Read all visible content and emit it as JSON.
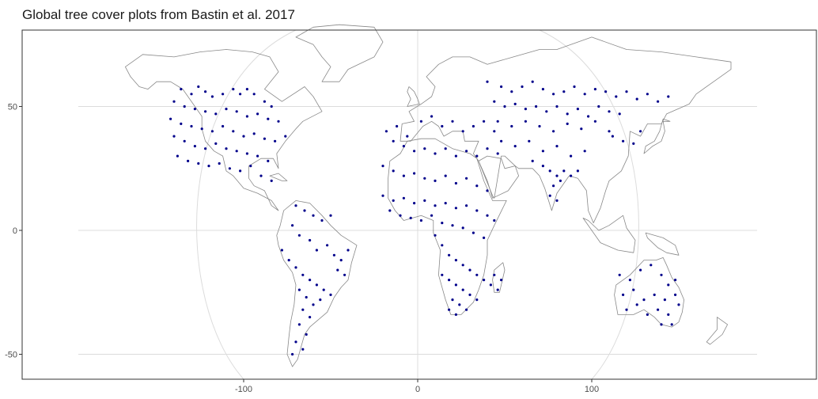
{
  "title": "Global tree cover plots from Bastin et al. 2017",
  "colors": {
    "points": "#00008B",
    "land": "#888888",
    "grid": "#dcdcdc",
    "frame": "#333333"
  },
  "chart_data": {
    "type": "scatter",
    "title": "Global tree cover plots from Bastin et al. 2017",
    "xlabel": "",
    "ylabel": "",
    "xlim": [
      -228,
      228
    ],
    "ylim": [
      -60,
      80
    ],
    "x_ticks": [
      -100,
      0,
      100
    ],
    "y_ticks": [
      -50,
      0,
      50
    ],
    "x_tick_labels": [
      "-100",
      "0",
      "100"
    ],
    "y_tick_labels": [
      "-50",
      "0",
      "50"
    ],
    "grid": true,
    "legend": "none",
    "basemap": "world coastlines (outline)",
    "points": [
      [
        -136,
        57
      ],
      [
        -130,
        55
      ],
      [
        -126,
        58
      ],
      [
        -122,
        56
      ],
      [
        -118,
        54
      ],
      [
        -112,
        55
      ],
      [
        -106,
        57
      ],
      [
        -102,
        55
      ],
      [
        -98,
        57
      ],
      [
        -94,
        55
      ],
      [
        -88,
        52
      ],
      [
        -84,
        50
      ],
      [
        -140,
        52
      ],
      [
        -134,
        50
      ],
      [
        -128,
        49
      ],
      [
        -122,
        48
      ],
      [
        -116,
        47
      ],
      [
        -110,
        49
      ],
      [
        -104,
        48
      ],
      [
        -98,
        46
      ],
      [
        -92,
        47
      ],
      [
        -86,
        45
      ],
      [
        -80,
        44
      ],
      [
        -142,
        45
      ],
      [
        -136,
        43
      ],
      [
        -130,
        42
      ],
      [
        -124,
        41
      ],
      [
        -118,
        40
      ],
      [
        -112,
        42
      ],
      [
        -106,
        40
      ],
      [
        -100,
        38
      ],
      [
        -94,
        39
      ],
      [
        -88,
        37
      ],
      [
        -82,
        36
      ],
      [
        -76,
        38
      ],
      [
        -140,
        38
      ],
      [
        -134,
        36
      ],
      [
        -128,
        34
      ],
      [
        -122,
        33
      ],
      [
        -116,
        35
      ],
      [
        -110,
        33
      ],
      [
        -104,
        32
      ],
      [
        -98,
        31
      ],
      [
        -92,
        30
      ],
      [
        -86,
        28
      ],
      [
        -138,
        30
      ],
      [
        -132,
        28
      ],
      [
        -126,
        27
      ],
      [
        -120,
        26
      ],
      [
        -114,
        27
      ],
      [
        -108,
        25
      ],
      [
        -102,
        24
      ],
      [
        -96,
        26
      ],
      [
        -90,
        22
      ],
      [
        -84,
        20
      ],
      [
        -70,
        10
      ],
      [
        -65,
        8
      ],
      [
        -60,
        6
      ],
      [
        -55,
        4
      ],
      [
        -50,
        6
      ],
      [
        -72,
        2
      ],
      [
        -68,
        -2
      ],
      [
        -62,
        -4
      ],
      [
        -58,
        -8
      ],
      [
        -52,
        -6
      ],
      [
        -48,
        -10
      ],
      [
        -44,
        -12
      ],
      [
        -40,
        -8
      ],
      [
        -46,
        -16
      ],
      [
        -42,
        -18
      ],
      [
        -78,
        -8
      ],
      [
        -74,
        -12
      ],
      [
        -70,
        -15
      ],
      [
        -66,
        -18
      ],
      [
        -62,
        -20
      ],
      [
        -58,
        -22
      ],
      [
        -54,
        -24
      ],
      [
        -50,
        -26
      ],
      [
        -56,
        -28
      ],
      [
        -60,
        -30
      ],
      [
        -68,
        -24
      ],
      [
        -64,
        -27
      ],
      [
        -66,
        -32
      ],
      [
        -62,
        -35
      ],
      [
        -68,
        -38
      ],
      [
        -64,
        -42
      ],
      [
        -70,
        -45
      ],
      [
        -66,
        -48
      ],
      [
        -72,
        -50
      ],
      [
        -18,
        40
      ],
      [
        -12,
        42
      ],
      [
        -6,
        38
      ],
      [
        2,
        44
      ],
      [
        8,
        46
      ],
      [
        14,
        42
      ],
      [
        20,
        44
      ],
      [
        26,
        40
      ],
      [
        32,
        42
      ],
      [
        38,
        44
      ],
      [
        44,
        40
      ],
      [
        -14,
        36
      ],
      [
        -8,
        34
      ],
      [
        -2,
        32
      ],
      [
        4,
        33
      ],
      [
        10,
        31
      ],
      [
        16,
        33
      ],
      [
        22,
        30
      ],
      [
        28,
        32
      ],
      [
        34,
        30
      ],
      [
        40,
        33
      ],
      [
        46,
        31
      ],
      [
        -20,
        26
      ],
      [
        -14,
        24
      ],
      [
        -8,
        22
      ],
      [
        -2,
        23
      ],
      [
        4,
        21
      ],
      [
        10,
        20
      ],
      [
        16,
        22
      ],
      [
        22,
        19
      ],
      [
        28,
        21
      ],
      [
        34,
        18
      ],
      [
        40,
        16
      ],
      [
        -20,
        14
      ],
      [
        -14,
        12
      ],
      [
        -8,
        13
      ],
      [
        -2,
        11
      ],
      [
        4,
        12
      ],
      [
        10,
        10
      ],
      [
        16,
        11
      ],
      [
        22,
        9
      ],
      [
        28,
        10
      ],
      [
        34,
        8
      ],
      [
        40,
        6
      ],
      [
        44,
        4
      ],
      [
        -16,
        8
      ],
      [
        -10,
        6
      ],
      [
        -4,
        5
      ],
      [
        2,
        4
      ],
      [
        8,
        6
      ],
      [
        14,
        3
      ],
      [
        20,
        2
      ],
      [
        26,
        1
      ],
      [
        32,
        -1
      ],
      [
        38,
        -3
      ],
      [
        10,
        -2
      ],
      [
        14,
        -6
      ],
      [
        18,
        -10
      ],
      [
        22,
        -12
      ],
      [
        26,
        -14
      ],
      [
        30,
        -16
      ],
      [
        34,
        -18
      ],
      [
        38,
        -20
      ],
      [
        42,
        -22
      ],
      [
        14,
        -18
      ],
      [
        18,
        -20
      ],
      [
        22,
        -22
      ],
      [
        26,
        -24
      ],
      [
        30,
        -26
      ],
      [
        34,
        -28
      ],
      [
        20,
        -28
      ],
      [
        24,
        -30
      ],
      [
        28,
        -32
      ],
      [
        18,
        -32
      ],
      [
        22,
        -34
      ],
      [
        48,
        -20
      ],
      [
        46,
        -24
      ],
      [
        44,
        -18
      ],
      [
        40,
        60
      ],
      [
        48,
        58
      ],
      [
        54,
        56
      ],
      [
        60,
        58
      ],
      [
        66,
        60
      ],
      [
        72,
        57
      ],
      [
        78,
        55
      ],
      [
        84,
        56
      ],
      [
        90,
        58
      ],
      [
        96,
        55
      ],
      [
        102,
        57
      ],
      [
        108,
        56
      ],
      [
        114,
        54
      ],
      [
        120,
        56
      ],
      [
        126,
        53
      ],
      [
        132,
        55
      ],
      [
        138,
        52
      ],
      [
        144,
        54
      ],
      [
        44,
        52
      ],
      [
        50,
        50
      ],
      [
        56,
        51
      ],
      [
        62,
        49
      ],
      [
        68,
        50
      ],
      [
        74,
        48
      ],
      [
        80,
        50
      ],
      [
        86,
        47
      ],
      [
        92,
        49
      ],
      [
        98,
        46
      ],
      [
        104,
        50
      ],
      [
        110,
        48
      ],
      [
        116,
        47
      ],
      [
        46,
        44
      ],
      [
        54,
        42
      ],
      [
        62,
        44
      ],
      [
        70,
        42
      ],
      [
        78,
        40
      ],
      [
        86,
        43
      ],
      [
        94,
        41
      ],
      [
        102,
        44
      ],
      [
        110,
        40
      ],
      [
        48,
        36
      ],
      [
        56,
        34
      ],
      [
        64,
        36
      ],
      [
        72,
        32
      ],
      [
        80,
        34
      ],
      [
        88,
        30
      ],
      [
        96,
        32
      ],
      [
        66,
        28
      ],
      [
        72,
        26
      ],
      [
        76,
        24
      ],
      [
        80,
        22
      ],
      [
        84,
        24
      ],
      [
        78,
        18
      ],
      [
        76,
        14
      ],
      [
        80,
        12
      ],
      [
        82,
        20
      ],
      [
        88,
        22
      ],
      [
        92,
        24
      ],
      [
        112,
        38
      ],
      [
        118,
        36
      ],
      [
        124,
        35
      ],
      [
        128,
        40
      ],
      [
        116,
        -18
      ],
      [
        122,
        -20
      ],
      [
        128,
        -16
      ],
      [
        134,
        -14
      ],
      [
        140,
        -18
      ],
      [
        144,
        -22
      ],
      [
        148,
        -20
      ],
      [
        118,
        -26
      ],
      [
        124,
        -24
      ],
      [
        130,
        -28
      ],
      [
        136,
        -26
      ],
      [
        142,
        -28
      ],
      [
        148,
        -26
      ],
      [
        120,
        -32
      ],
      [
        126,
        -30
      ],
      [
        132,
        -34
      ],
      [
        138,
        -32
      ],
      [
        144,
        -34
      ],
      [
        150,
        -30
      ],
      [
        140,
        -38
      ],
      [
        146,
        -38
      ]
    ]
  }
}
